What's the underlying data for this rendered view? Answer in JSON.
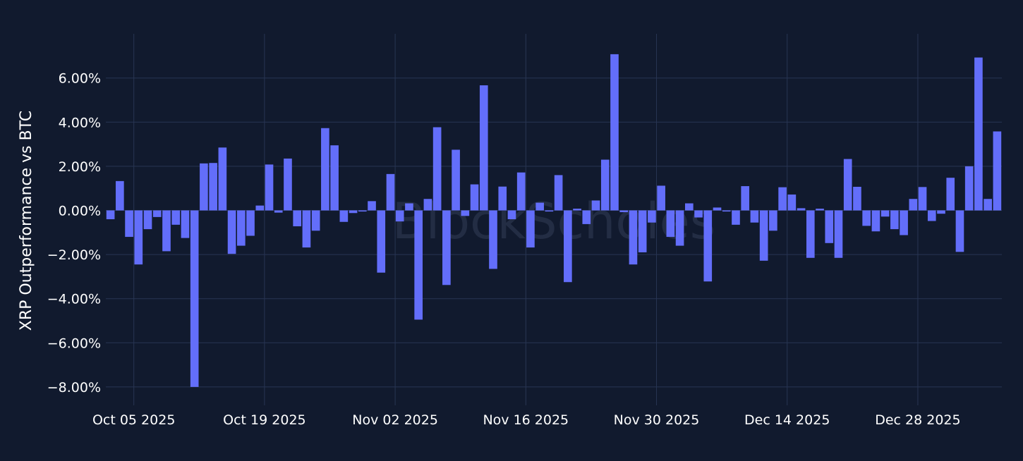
{
  "chart_data": {
    "type": "bar",
    "ylabel": "XRP Outperformance vs BTC",
    "xlabel": "",
    "ylim": [
      -8.9,
      7.7
    ],
    "yticks": [
      "6.00%",
      "4.00%",
      "2.00%",
      "0.00%",
      "−2.00%",
      "−4.00%",
      "−6.00%",
      "−8.00%"
    ],
    "ytick_values": [
      6,
      4,
      2,
      0,
      -2,
      -4,
      -6,
      -8
    ],
    "xticks": [
      "Oct 05 2025",
      "Oct 19 2025",
      "Nov 02 2025",
      "Nov 16 2025",
      "Nov 30 2025",
      "Dec 14 2025",
      "Dec 28 2025"
    ],
    "xtick_dates": [
      "2025-10-05",
      "2025-10-19",
      "2025-11-02",
      "2025-11-16",
      "2025-11-30",
      "2025-12-14",
      "2025-12-28"
    ],
    "x_start": "2025-10-02",
    "x_end": "2026-01-06",
    "grid": true,
    "bar_color": "#636efa",
    "watermark": "BlockScholes",
    "series": [
      {
        "values": [
          -0.4,
          1.33,
          -1.2,
          -2.45,
          -0.85,
          -0.3,
          -1.85,
          -0.65,
          -1.25,
          -8.0,
          2.13,
          2.15,
          2.85,
          -1.97,
          -1.6,
          -1.15,
          0.22,
          2.08,
          -0.1,
          2.35,
          -0.72,
          -1.68,
          -0.92,
          3.73,
          2.95,
          -0.52,
          -0.12,
          -0.05,
          0.42,
          -2.82,
          1.65,
          -0.5,
          0.32,
          -4.95,
          0.52,
          3.77,
          -3.38,
          2.75,
          -0.25,
          1.18,
          5.67,
          -2.65,
          1.08,
          -0.4,
          1.72,
          -1.68,
          0.35,
          -0.05,
          1.6,
          -3.25,
          0.08,
          -0.62,
          0.45,
          2.3,
          7.08,
          -0.08,
          -2.45,
          -1.9,
          -0.55,
          1.12,
          -1.2,
          -1.6,
          0.32,
          -0.32,
          -3.22,
          0.13,
          -0.05,
          -0.65,
          1.1,
          -0.55,
          -2.28,
          -0.92,
          1.05,
          0.72,
          0.1,
          -2.15,
          0.08,
          -1.48,
          -2.15,
          2.33,
          1.07,
          -0.7,
          -0.95,
          -0.28,
          -0.85,
          -1.12,
          0.52,
          1.06,
          -0.48,
          -0.15,
          1.48,
          -1.88,
          2.0,
          6.93,
          0.52,
          3.58
        ]
      }
    ]
  }
}
